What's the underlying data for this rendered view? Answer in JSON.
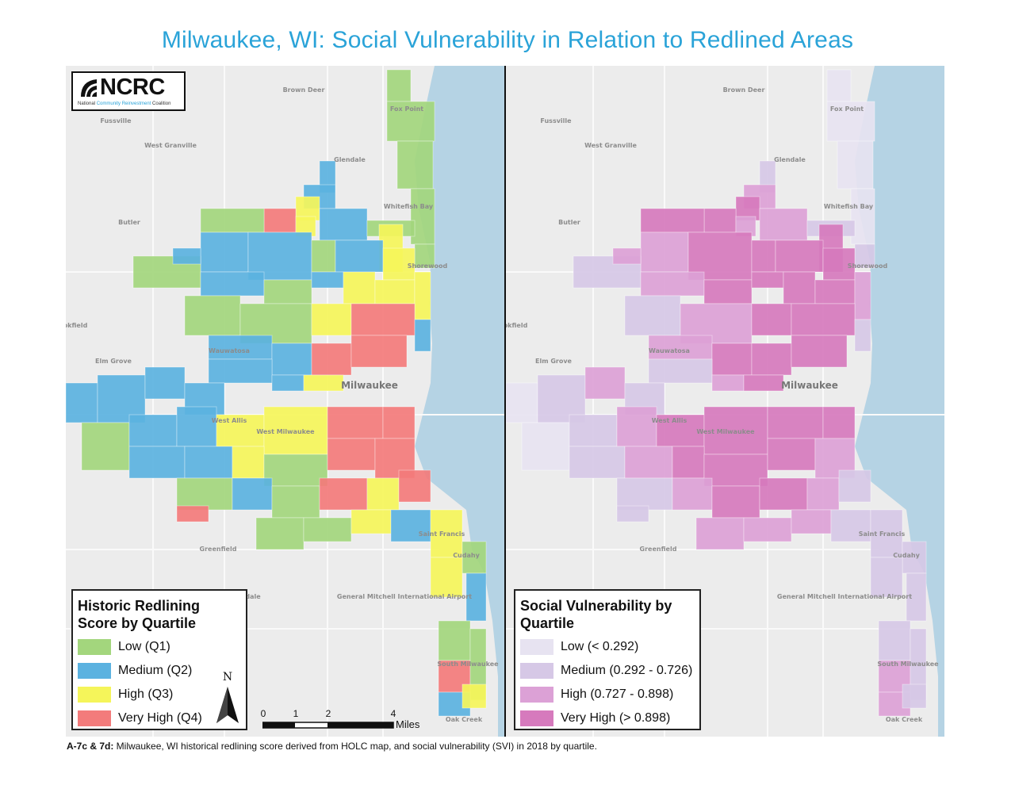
{
  "title": "Milwaukee, WI: Social Vulnerability in Relation to Redlined Areas",
  "logo": {
    "name": "NCRC",
    "subtitle_part1": "National ",
    "subtitle_accent": "Community Reinvestment",
    "subtitle_part2": " Coalition"
  },
  "map_labels": {
    "brown_deer": "Brown Deer",
    "fox_point": "Fox Point",
    "fussville": "Fussville",
    "west_granville": "West Granville",
    "glendale": "Glendale",
    "whitefish_bay": "Whitefish Bay",
    "butler": "Butler",
    "shorewood": "Shorewood",
    "brookfield": "okfield",
    "wauwatosa": "Wauwatosa",
    "elm_grove": "Elm Grove",
    "milwaukee": "Milwaukee",
    "west_allis": "West Allis",
    "west_milwaukee": "West Milwaukee",
    "saint_francis": "Saint Francis",
    "cudahy": "Cudahy",
    "greenfield": "Greenfield",
    "airport": "General Mitchell International Airport",
    "south_milwaukee": "South Milwaukee",
    "oak_creek": "Oak Creek",
    "hales_corners": "dale"
  },
  "legend_redlining": {
    "title_line1": "Historic Redlining",
    "title_line2": "Score by Quartile",
    "items": [
      {
        "label": "Low (Q1)",
        "color": "#a3d67d"
      },
      {
        "label": "Medium (Q2)",
        "color": "#5bb2e0"
      },
      {
        "label": "High (Q3)",
        "color": "#f5f55a"
      },
      {
        "label": "Very High (Q4)",
        "color": "#f37b7b"
      }
    ]
  },
  "legend_svi": {
    "title_line1": "Social Vulnerability by",
    "title_line2": "Quartile",
    "items": [
      {
        "label": "Low (< 0.292)",
        "color": "#e7e3f1"
      },
      {
        "label": "Medium (0.292 - 0.726)",
        "color": "#d6c8e6"
      },
      {
        "label": "High (0.727 - 0.898)",
        "color": "#dca1d6"
      },
      {
        "label": "Very High (> 0.898)",
        "color": "#d67abd"
      }
    ]
  },
  "north_arrow": {
    "label": "N"
  },
  "scale": {
    "ticks": [
      "0",
      "1",
      "2",
      "4"
    ],
    "units": "Miles"
  },
  "caption": {
    "bold": "A-7c & 7d:",
    "text": " Milwaukee, WI historical redlining score derived from HOLC map, and social vulnerability (SVI) in 2018 by quartile."
  },
  "colors": {
    "title": "#2aa3d8",
    "lake": "#b5d3e4",
    "land": "#ececec"
  }
}
